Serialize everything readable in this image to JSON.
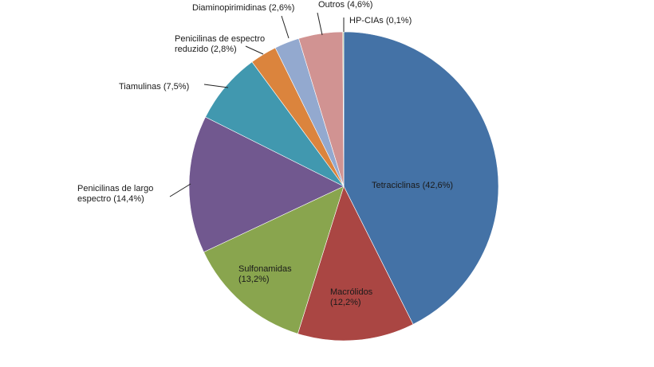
{
  "chart_data": {
    "type": "pie",
    "start_angle_deg": 0,
    "direction": "clockwise",
    "slices": [
      {
        "label": "Tetraciclinas (42,6%)",
        "value": 42.6,
        "color": "#4472a6"
      },
      {
        "label": "Macrólidos (12,2%)",
        "value": 12.2,
        "color": "#aa4643"
      },
      {
        "label": "Sulfonamidas (13,2%)",
        "value": 13.2,
        "color": "#89a54e"
      },
      {
        "label": "Penicilinas de largo espectro (14,4%)",
        "value": 14.4,
        "color": "#71588f"
      },
      {
        "label": "Tiamulinas (7,5%)",
        "value": 7.5,
        "color": "#4198af"
      },
      {
        "label": "Penicilinas de espectro reduzido (2,8%)",
        "value": 2.8,
        "color": "#db843d"
      },
      {
        "label": "Diaminopirimidinas (2,6%)",
        "value": 2.6,
        "color": "#93a9cf"
      },
      {
        "label": "Outros (4,6%)",
        "value": 4.6,
        "color": "#d19392"
      },
      {
        "label": "HP-CIAs (0,1%)",
        "value": 0.1,
        "color": "#b9cd96"
      }
    ]
  }
}
